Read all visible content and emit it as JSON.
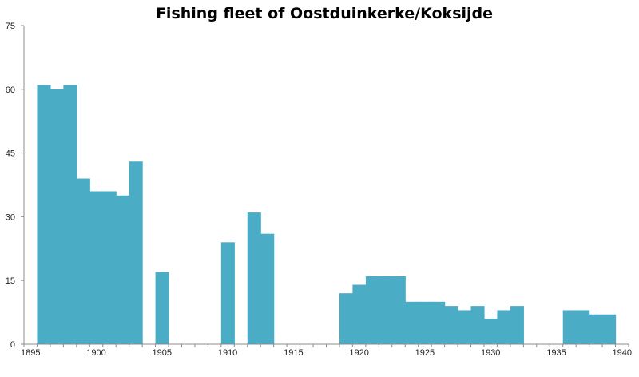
{
  "chart_data": {
    "type": "bar",
    "title": "Fishing fleet of Oostduinkerke/Koksijde",
    "xlabel": "",
    "ylabel": "",
    "ylim": [
      0,
      75
    ],
    "yticks": [
      0,
      15,
      30,
      45,
      60,
      75
    ],
    "xticks_labels": [
      "1895",
      "1900",
      "1905",
      "1910",
      "1915",
      "1920",
      "1925",
      "1930",
      "1935",
      "1940"
    ],
    "xrange": [
      1895,
      1940
    ],
    "grid": false,
    "legend": null,
    "bar_color": "#4BACC6",
    "categories": [
      1895,
      1896,
      1897,
      1898,
      1899,
      1900,
      1901,
      1902,
      1903,
      1904,
      1905,
      1906,
      1907,
      1908,
      1909,
      1910,
      1911,
      1912,
      1913,
      1914,
      1915,
      1916,
      1917,
      1918,
      1919,
      1920,
      1921,
      1922,
      1923,
      1924,
      1925,
      1926,
      1927,
      1928,
      1929,
      1930,
      1931,
      1932,
      1933,
      1934,
      1935,
      1936,
      1937,
      1938,
      1939,
      1940
    ],
    "values": [
      0,
      61,
      60,
      61,
      39,
      36,
      36,
      35,
      43,
      0,
      17,
      0,
      0,
      0,
      0,
      24,
      0,
      31,
      26,
      0,
      0,
      0,
      0,
      0,
      12,
      14,
      16,
      16,
      16,
      10,
      10,
      10,
      9,
      8,
      9,
      6,
      8,
      9,
      0,
      0,
      0,
      8,
      8,
      7,
      7,
      0
    ]
  }
}
